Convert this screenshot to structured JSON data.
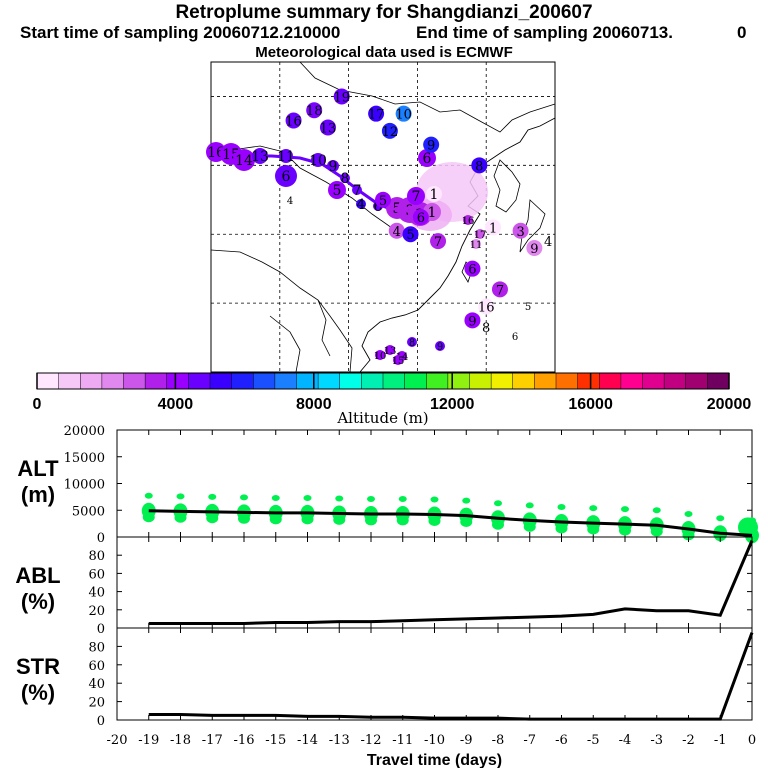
{
  "header": {
    "title": "Retroplume summary for Shangdianzi_200607",
    "start_label": "Start time of sampling 20060712.210000",
    "end_label": "End time of sampling 20060713.",
    "end_suffix": "0",
    "met_label": "Meteorological data used is ECMWF"
  },
  "colorbar": {
    "ticks": [
      "0",
      "4000",
      "8000",
      "12000",
      "16000",
      "20000"
    ],
    "label": "Altitude  (m)",
    "colors": [
      "#ffe8ff",
      "#f6c8f8",
      "#eeaaf2",
      "#e088ee",
      "#cc55ea",
      "#b020ea",
      "#9a00ff",
      "#6a00ff",
      "#3a00ff",
      "#2020ff",
      "#1a50ff",
      "#1a80ff",
      "#00b4ff",
      "#00d8ff",
      "#00ffe8",
      "#00f0b4",
      "#00f080",
      "#00f050",
      "#40f020",
      "#90f010",
      "#c8f000",
      "#f0f000",
      "#ffd000",
      "#ffa000",
      "#ff7000",
      "#ff3000",
      "#ff0050",
      "#ff0090",
      "#e00090",
      "#c00080",
      "#a00070",
      "#700060"
    ]
  },
  "map_points": [
    {
      "label": "19",
      "lon": 99,
      "lat": 50,
      "color": "#6a00ff"
    },
    {
      "label": "18",
      "lon": 95,
      "lat": 48,
      "color": "#7a00ff"
    },
    {
      "label": "16",
      "lon": 92,
      "lat": 46.5,
      "color": "#6a00ff"
    },
    {
      "label": "17",
      "lon": 104,
      "lat": 47.5,
      "color": "#3a00ff"
    },
    {
      "label": "13",
      "lon": 97,
      "lat": 45.5,
      "color": "#6a00ff"
    },
    {
      "label": "12",
      "lon": 106,
      "lat": 45,
      "color": "#2020ff"
    },
    {
      "label": "10",
      "lon": 108,
      "lat": 47.5,
      "color": "#1a80ff"
    },
    {
      "label": "9",
      "lon": 112,
      "lat": 43,
      "color": "#2020ff"
    },
    {
      "label": "8",
      "lon": 119,
      "lat": 40,
      "color": "#3a00ff"
    },
    {
      "label": "5",
      "lon": 105,
      "lat": 35,
      "color": "#9a00ff"
    },
    {
      "label": "6",
      "lon": 110.5,
      "lat": 32.5,
      "color": "#9a00ff"
    },
    {
      "label": "4",
      "lon": 107,
      "lat": 30.5,
      "color": "#cc55ea"
    },
    {
      "label": "5",
      "lon": 109,
      "lat": 30,
      "color": "#3a00ff"
    },
    {
      "label": "7",
      "lon": 113,
      "lat": 29,
      "color": "#b020ea"
    },
    {
      "label": "6",
      "lon": 118,
      "lat": 25,
      "color": "#9a00ff"
    },
    {
      "label": "7",
      "lon": 122,
      "lat": 22,
      "color": "#b020ea"
    },
    {
      "label": "1",
      "lon": 121,
      "lat": 31,
      "color": "#ffe8ff"
    },
    {
      "label": "3",
      "lon": 125,
      "lat": 30.5,
      "color": "#cc55ea"
    },
    {
      "label": "9",
      "lon": 127,
      "lat": 28,
      "color": "#e088ee"
    },
    {
      "label": "4",
      "lon": 129,
      "lat": 29,
      "color": "#000000"
    },
    {
      "label": "16",
      "lon": 120,
      "lat": 19.5,
      "color": "#ffe8ff"
    },
    {
      "label": "9",
      "lon": 118,
      "lat": 17.5,
      "color": "#9a00ff"
    },
    {
      "label": "8",
      "lon": 120,
      "lat": 16.5,
      "color": "#000000"
    }
  ],
  "map_small_labels": [
    "4",
    "5",
    "6",
    "8",
    "9",
    "10",
    "13",
    "14",
    "15",
    "16",
    "17",
    "11"
  ],
  "chart_data": [
    {
      "type": "scatter",
      "panel": "ALT",
      "ylabel": "ALT\n(m)",
      "ylabel_line1": "ALT",
      "ylabel_line2": "(m)",
      "ylim": [
        0,
        20000
      ],
      "yticks": [
        "20000",
        "15000",
        "10000",
        "5000",
        "0"
      ],
      "line_x": [
        -19,
        -18,
        -17,
        -16,
        -15,
        -14,
        -13,
        -12,
        -11,
        -10,
        -9,
        -8,
        -7,
        -6,
        -5,
        -4,
        -3,
        -2,
        -1,
        0
      ],
      "line_y": [
        4900,
        4800,
        4700,
        4600,
        4500,
        4500,
        4400,
        4300,
        4300,
        4200,
        4000,
        3500,
        3100,
        2800,
        2600,
        2400,
        2200,
        1500,
        700,
        300
      ]
    },
    {
      "type": "line",
      "panel": "ABL",
      "ylabel_line1": "ABL",
      "ylabel_line2": "(%)",
      "ylim": [
        0,
        100
      ],
      "yticks": [
        "80",
        "60",
        "40",
        "20",
        "0"
      ],
      "x": [
        -19,
        -18,
        -17,
        -16,
        -15,
        -14,
        -13,
        -12,
        -11,
        -10,
        -9,
        -8,
        -7,
        -6,
        -5,
        -4,
        -3,
        -2,
        -1,
        0
      ],
      "y": [
        5,
        5,
        5,
        5,
        6,
        6,
        7,
        7,
        8,
        9,
        10,
        11,
        12,
        13,
        15,
        21,
        19,
        19,
        14,
        96
      ]
    },
    {
      "type": "line",
      "panel": "STR",
      "ylabel_line1": "STR",
      "ylabel_line2": "(%)",
      "ylim": [
        0,
        100
      ],
      "yticks": [
        "80",
        "60",
        "40",
        "20",
        "0"
      ],
      "x": [
        -19,
        -18,
        -17,
        -16,
        -15,
        -14,
        -13,
        -12,
        -11,
        -10,
        -9,
        -8,
        -7,
        -6,
        -5,
        -4,
        -3,
        -2,
        -1,
        0
      ],
      "y": [
        6,
        6,
        5,
        5,
        5,
        4,
        4,
        3,
        3,
        2,
        2,
        2,
        1,
        1,
        1,
        1,
        1,
        1,
        1,
        95
      ]
    }
  ],
  "x_axis": {
    "ticks": [
      "-20",
      "-19",
      "-18",
      "-17",
      "-16",
      "-15",
      "-14",
      "-13",
      "-12",
      "-11",
      "-10",
      "-9",
      "-8",
      "-7",
      "-6",
      "-5",
      "-4",
      "-3",
      "-2",
      "-1",
      "0"
    ],
    "label": "Travel time (days)"
  }
}
